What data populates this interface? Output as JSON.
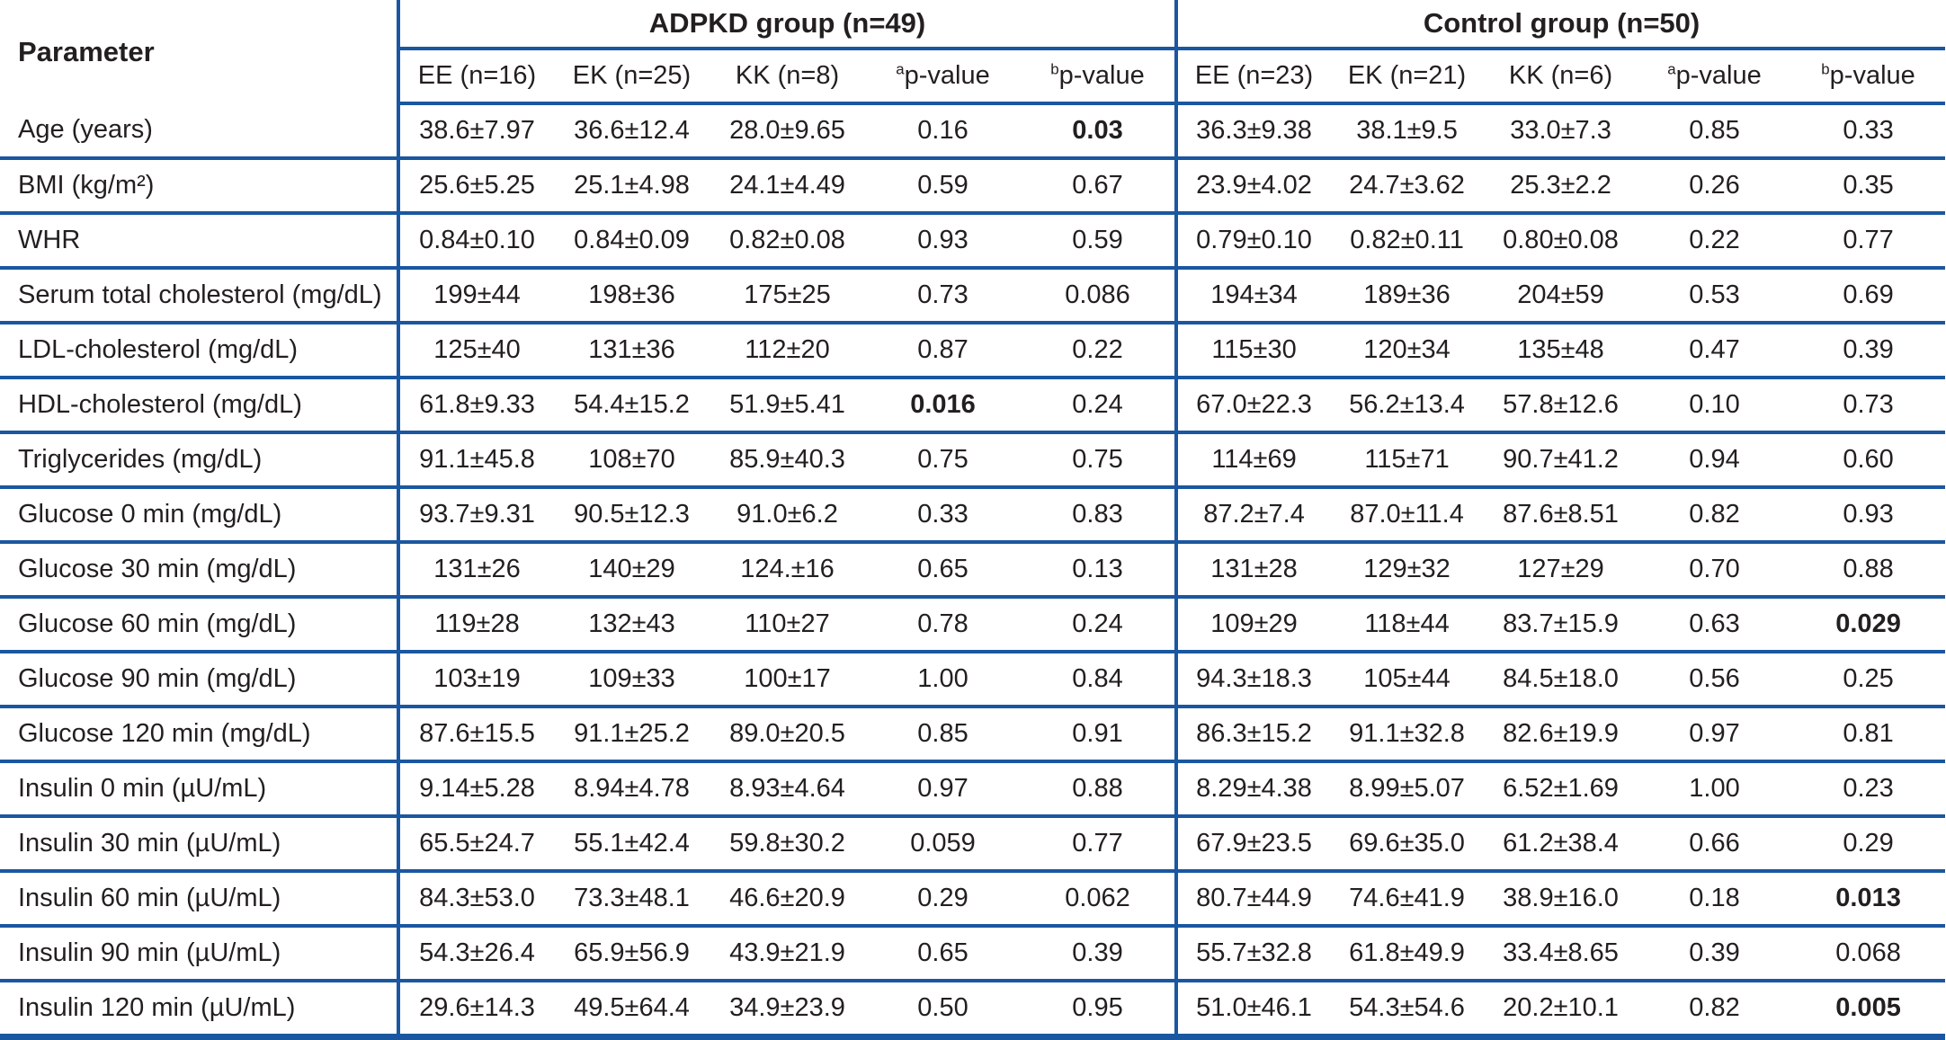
{
  "line_color": "#1a57a0",
  "text_color": "#231f20",
  "table": {
    "parameter_header": "Parameter",
    "groups": [
      {
        "label": "ADPKD group (n=49)",
        "subcols": [
          {
            "sup": "",
            "label": "EE (n=16)"
          },
          {
            "sup": "",
            "label": "EK (n=25)"
          },
          {
            "sup": "",
            "label": "KK (n=8)"
          },
          {
            "sup": "a",
            "label": "p-value"
          },
          {
            "sup": "b",
            "label": "p-value"
          }
        ]
      },
      {
        "label": "Control group (n=50)",
        "subcols": [
          {
            "sup": "",
            "label": "EE (n=23)"
          },
          {
            "sup": "",
            "label": "EK (n=21)"
          },
          {
            "sup": "",
            "label": "KK (n=6)"
          },
          {
            "sup": "a",
            "label": "p-value"
          },
          {
            "sup": "b",
            "label": "p-value"
          }
        ]
      }
    ],
    "rows": [
      {
        "param": "Age (years)",
        "cells": [
          "38.6±7.97",
          "36.6±12.4",
          "28.0±9.65",
          "0.16",
          "0.03",
          "36.3±9.38",
          "38.1±9.5",
          "33.0±7.3",
          "0.85",
          "0.33"
        ]
      },
      {
        "param": "BMI (kg/m²)",
        "cells": [
          "25.6±5.25",
          "25.1±4.98",
          "24.1±4.49",
          "0.59",
          "0.67",
          "23.9±4.02",
          "24.7±3.62",
          "25.3±2.2",
          "0.26",
          "0.35"
        ]
      },
      {
        "param": "WHR",
        "cells": [
          "0.84±0.10",
          "0.84±0.09",
          "0.82±0.08",
          "0.93",
          "0.59",
          "0.79±0.10",
          "0.82±0.11",
          "0.80±0.08",
          "0.22",
          "0.77"
        ]
      },
      {
        "param": "Serum total cholesterol (mg/dL)",
        "cells": [
          "199±44",
          "198±36",
          "175±25",
          "0.73",
          "0.086",
          "194±34",
          "189±36",
          "204±59",
          "0.53",
          "0.69"
        ]
      },
      {
        "param": "LDL-cholesterol (mg/dL)",
        "cells": [
          "125±40",
          "131±36",
          "112±20",
          "0.87",
          "0.22",
          "115±30",
          "120±34",
          "135±48",
          "0.47",
          "0.39"
        ]
      },
      {
        "param": "HDL-cholesterol (mg/dL)",
        "cells": [
          "61.8±9.33",
          "54.4±15.2",
          "51.9±5.41",
          "0.016",
          "0.24",
          "67.0±22.3",
          "56.2±13.4",
          "57.8±12.6",
          "0.10",
          "0.73"
        ]
      },
      {
        "param": "Triglycerides (mg/dL)",
        "cells": [
          "91.1±45.8",
          "108±70",
          "85.9±40.3",
          "0.75",
          "0.75",
          "114±69",
          "115±71",
          "90.7±41.2",
          "0.94",
          "0.60"
        ]
      },
      {
        "param": "Glucose 0 min (mg/dL)",
        "cells": [
          "93.7±9.31",
          "90.5±12.3",
          "91.0±6.2",
          "0.33",
          "0.83",
          "87.2±7.4",
          "87.0±11.4",
          "87.6±8.51",
          "0.82",
          "0.93"
        ]
      },
      {
        "param": "Glucose 30 min (mg/dL)",
        "cells": [
          "131±26",
          "140±29",
          "124.±16",
          "0.65",
          "0.13",
          "131±28",
          "129±32",
          "127±29",
          "0.70",
          "0.88"
        ]
      },
      {
        "param": "Glucose 60 min (mg/dL)",
        "cells": [
          "119±28",
          "132±43",
          "110±27",
          "0.78",
          "0.24",
          "109±29",
          "118±44",
          "83.7±15.9",
          "0.63",
          "0.029"
        ]
      },
      {
        "param": "Glucose 90 min (mg/dL)",
        "cells": [
          "103±19",
          "109±33",
          "100±17",
          "1.00",
          "0.84",
          "94.3±18.3",
          "105±44",
          "84.5±18.0",
          "0.56",
          "0.25"
        ]
      },
      {
        "param": "Glucose 120 min (mg/dL)",
        "cells": [
          "87.6±15.5",
          "91.1±25.2",
          "89.0±20.5",
          "0.85",
          "0.91",
          "86.3±15.2",
          "91.1±32.8",
          "82.6±19.9",
          "0.97",
          "0.81"
        ]
      },
      {
        "param": "Insulin 0 min (µU/mL)",
        "cells": [
          "9.14±5.28",
          "8.94±4.78",
          "8.93±4.64",
          "0.97",
          "0.88",
          "8.29±4.38",
          "8.99±5.07",
          "6.52±1.69",
          "1.00",
          "0.23"
        ]
      },
      {
        "param": "Insulin 30 min (µU/mL)",
        "cells": [
          "65.5±24.7",
          "55.1±42.4",
          "59.8±30.2",
          "0.059",
          "0.77",
          "67.9±23.5",
          "69.6±35.0",
          "61.2±38.4",
          "0.66",
          "0.29"
        ]
      },
      {
        "param": "Insulin 60 min (µU/mL)",
        "cells": [
          "84.3±53.0",
          "73.3±48.1",
          "46.6±20.9",
          "0.29",
          "0.062",
          "80.7±44.9",
          "74.6±41.9",
          "38.9±16.0",
          "0.18",
          "0.013"
        ]
      },
      {
        "param": "Insulin 90 min (µU/mL)",
        "cells": [
          "54.3±26.4",
          "65.9±56.9",
          "43.9±21.9",
          "0.65",
          "0.39",
          "55.7±32.8",
          "61.8±49.9",
          "33.4±8.65",
          "0.39",
          "0.068"
        ]
      },
      {
        "param": "Insulin 120 min (µU/mL)",
        "cells": [
          "29.6±14.3",
          "49.5±64.4",
          "34.9±23.9",
          "0.50",
          "0.95",
          "51.0±46.1",
          "54.3±54.6",
          "20.2±10.1",
          "0.82",
          "0.005"
        ]
      }
    ],
    "bold_cells": [
      [
        0,
        4
      ],
      [
        5,
        3
      ],
      [
        9,
        9
      ],
      [
        14,
        9
      ],
      [
        16,
        9
      ]
    ]
  }
}
